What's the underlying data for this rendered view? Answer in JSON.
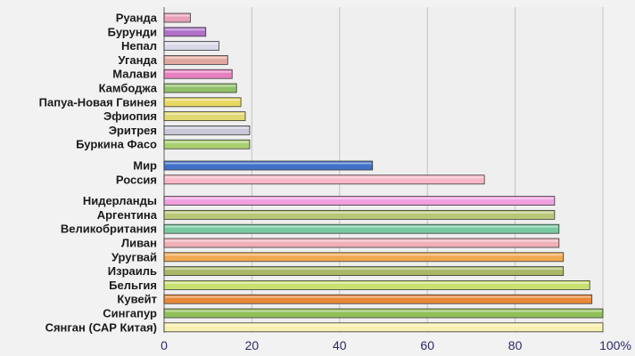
{
  "chart_data": {
    "type": "bar",
    "orientation": "horizontal",
    "xlim": [
      0,
      100
    ],
    "x_ticks": [
      "0",
      "20",
      "40",
      "60",
      "80",
      "100%"
    ],
    "grid": "vertical",
    "categories": [
      "Руанда",
      "Бурунди",
      "Непал",
      "Уганда",
      "Малави",
      "Камбоджа",
      "Папуа-Новая Гвинея",
      "Эфиопия",
      "Эритрея",
      "Буркина Фасо",
      "Мир",
      "Россия",
      "Нидерланды",
      "Аргентина",
      "Великобритания",
      "Ливан",
      "Уругвай",
      "Израиль",
      "Бельгия",
      "Кувейт",
      "Сингапур",
      "Сянган (САР Китая)"
    ],
    "values": [
      6,
      9.5,
      12.5,
      14.5,
      15.5,
      16.5,
      17.5,
      18.5,
      19.5,
      19.5,
      47.5,
      73,
      89,
      89,
      90,
      90,
      91,
      91,
      97,
      97.5,
      100,
      100
    ],
    "colors": [
      "#e8a0b8",
      "#b070c8",
      "#d8d8e8",
      "#e0a8a0",
      "#e880c0",
      "#90c068",
      "#e8d860",
      "#e0d870",
      "#c8c8d8",
      "#a8d070",
      "#4070c8",
      "#f8b8c8",
      "#f0a0e0",
      "#b8c878",
      "#78c8a0",
      "#f0b0b8",
      "#f0a850",
      "#a8b868",
      "#c8e070",
      "#e88838",
      "#90c058",
      "#f8f0b0"
    ]
  }
}
